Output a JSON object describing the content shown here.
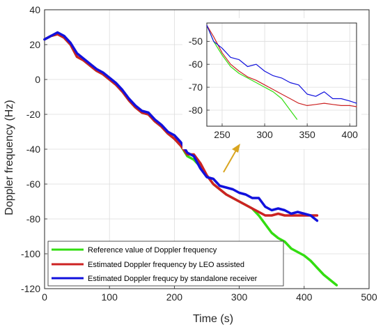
{
  "chart_data": [
    {
      "type": "line",
      "xlabel": "Time (s)",
      "ylabel": "Doppler frequency (Hz)",
      "xlim": [
        0,
        500
      ],
      "ylim": [
        -120,
        40
      ],
      "xticks": [
        0,
        100,
        200,
        300,
        400,
        500
      ],
      "yticks": [
        -120,
        -100,
        -80,
        -60,
        -40,
        -20,
        0,
        20,
        40
      ],
      "grid": true,
      "legend_position": "bottom-left",
      "series": [
        {
          "name": "Reference value of Doppler frequency",
          "color": "#33dd11",
          "x": [
            0,
            10,
            20,
            30,
            40,
            50,
            60,
            70,
            80,
            90,
            100,
            110,
            120,
            130,
            140,
            150,
            160,
            170,
            180,
            190,
            200,
            210,
            220,
            230,
            240,
            250,
            260,
            270,
            280,
            290,
            300,
            310,
            320,
            330,
            340,
            350,
            360,
            370,
            380,
            390,
            400,
            410,
            420,
            430,
            440,
            450
          ],
          "y": [
            23,
            25,
            26,
            24,
            20,
            13,
            11,
            8,
            5,
            3,
            0,
            -3,
            -7,
            -12,
            -16,
            -19,
            -20,
            -24,
            -27,
            -31,
            -34,
            -38,
            -44,
            -46,
            -50,
            -55,
            -60,
            -63,
            -66,
            -68,
            -70,
            -72,
            -74,
            -78,
            -83,
            -88,
            -91,
            -93,
            -97,
            -99,
            -101,
            -104,
            -108,
            -112,
            -115,
            -118
          ]
        },
        {
          "name": "Estimated Doppler frequency by LEO assisted",
          "color": "#cc2222",
          "x": [
            0,
            10,
            20,
            30,
            40,
            50,
            60,
            70,
            80,
            90,
            100,
            110,
            120,
            130,
            140,
            150,
            160,
            170,
            180,
            190,
            200,
            210,
            220,
            230,
            240,
            250,
            260,
            270,
            280,
            290,
            300,
            310,
            320,
            330,
            340,
            350,
            360,
            370,
            380,
            390,
            400,
            410,
            420
          ],
          "y": [
            23,
            25,
            26,
            24,
            20,
            13,
            11,
            8,
            5,
            3,
            0,
            -3,
            -7,
            -12,
            -16,
            -19,
            -20,
            -24,
            -27,
            -31,
            -34,
            -38,
            -43,
            -43,
            -48,
            -55,
            -60,
            -63,
            -66,
            -68,
            -70,
            -72,
            -74,
            -76,
            -78,
            -78,
            -77,
            -78,
            -78,
            -78,
            -78,
            -78,
            -78
          ]
        },
        {
          "name": "Estimated Doppler frequcy by standalone receiver",
          "color": "#1111dd",
          "x": [
            0,
            10,
            20,
            30,
            40,
            50,
            60,
            70,
            80,
            90,
            100,
            110,
            120,
            130,
            140,
            150,
            160,
            170,
            180,
            190,
            200,
            210,
            220,
            230,
            240,
            250,
            260,
            270,
            280,
            290,
            300,
            310,
            320,
            330,
            340,
            350,
            360,
            370,
            380,
            390,
            400,
            410,
            420
          ],
          "y": [
            23,
            25,
            27,
            25,
            21,
            15,
            12,
            9,
            6,
            4,
            1,
            -2,
            -6,
            -11,
            -15,
            -18,
            -19,
            -23,
            -26,
            -30,
            -32,
            -36,
            -42,
            -44,
            -51,
            -56,
            -57,
            -61,
            -62,
            -63,
            -65,
            -66,
            -68,
            -68,
            -73,
            -75,
            -74,
            -75,
            -77,
            -76,
            -77,
            -78,
            -81
          ]
        }
      ]
    },
    {
      "type": "line",
      "xlim": [
        232,
        408
      ],
      "ylim": [
        -87,
        -42
      ],
      "xticks": [
        250,
        300,
        350,
        400
      ],
      "yticks": [
        -80,
        -70,
        -60,
        -50
      ],
      "grid": true,
      "series": [
        {
          "name": "Reference value of Doppler frequency",
          "color": "#33dd11",
          "x": [
            232,
            240,
            250,
            260,
            270,
            280,
            290,
            300,
            310,
            320,
            330,
            338
          ],
          "y": [
            -43,
            -50,
            -56,
            -61,
            -64,
            -66,
            -68,
            -70,
            -72,
            -75,
            -80,
            -84
          ]
        },
        {
          "name": "Estimated Doppler frequency by LEO assisted",
          "color": "#cc2222",
          "x": [
            232,
            240,
            250,
            260,
            270,
            280,
            290,
            300,
            310,
            320,
            330,
            340,
            350,
            360,
            370,
            380,
            390,
            400,
            408
          ],
          "y": [
            -43,
            -48,
            -55,
            -60,
            -63,
            -65.5,
            -67,
            -69,
            -71,
            -73,
            -75,
            -77,
            -78,
            -77.5,
            -77,
            -77.5,
            -78,
            -78,
            -78.5
          ]
        },
        {
          "name": "Estimated Doppler frequcy by standalone receiver",
          "color": "#1111dd",
          "x": [
            232,
            240,
            250,
            260,
            270,
            280,
            290,
            300,
            310,
            320,
            330,
            340,
            350,
            360,
            370,
            380,
            390,
            400,
            408
          ],
          "y": [
            -43,
            -50,
            -53,
            -57,
            -58,
            -61,
            -60,
            -63,
            -65,
            -66,
            -68,
            -69,
            -73,
            -74,
            -72,
            -75,
            -75,
            -76,
            -77
          ]
        }
      ]
    }
  ]
}
